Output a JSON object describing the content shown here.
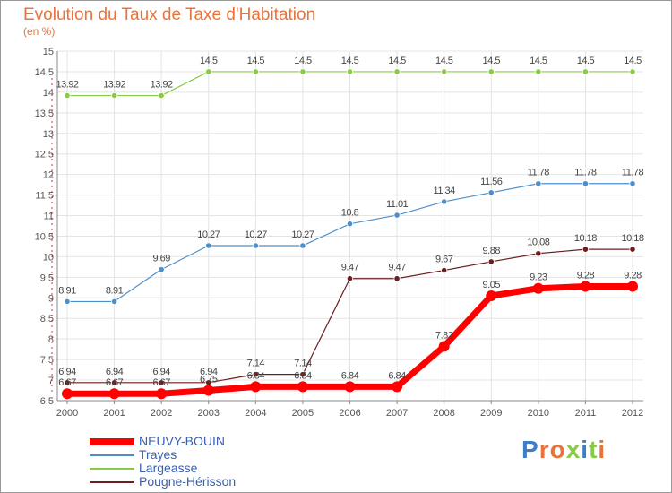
{
  "title": "Evolution du Taux de Taxe d'Habitation",
  "subtitle": "(en %)",
  "logo": "Proxiti",
  "chart_data": {
    "type": "line",
    "categories": [
      "2000",
      "2001",
      "2002",
      "2003",
      "2004",
      "2005",
      "2006",
      "2007",
      "2008",
      "2009",
      "2010",
      "2011",
      "2012"
    ],
    "ylim": [
      6.5,
      15
    ],
    "yticks": [
      "6.5",
      "7",
      "7.5",
      "8",
      "8.5",
      "9",
      "9.5",
      "10",
      "10.5",
      "11",
      "11.5",
      "12",
      "12.5",
      "13",
      "13.5",
      "14",
      "14.5",
      "15"
    ],
    "grid": true,
    "legend": "bottom-left",
    "series": [
      {
        "name": "NEUVY-BOUIN",
        "color": "#ff0000",
        "values": [
          6.67,
          6.67,
          6.67,
          6.75,
          6.84,
          6.84,
          6.84,
          6.84,
          7.82,
          9.05,
          9.23,
          9.28,
          9.28
        ],
        "labels": [
          "6.67",
          "6.67",
          "6.67",
          "6.75",
          "6.84",
          "6.84",
          "6.84",
          "6.84",
          "7.82",
          "9.05",
          "9.23",
          "9.28",
          "9.28"
        ]
      },
      {
        "name": "Trayes",
        "color": "#4f8fc8",
        "values": [
          8.91,
          8.91,
          9.69,
          10.27,
          10.27,
          10.27,
          10.8,
          11.01,
          11.34,
          11.56,
          11.78,
          11.78,
          11.78
        ],
        "labels": [
          "8.91",
          "8.91",
          "9.69",
          "10.27",
          "10.27",
          "10.27",
          "10.8",
          "11.01",
          "11.34",
          "11.56",
          "11.78",
          "11.78",
          "11.78"
        ]
      },
      {
        "name": "Largeasse",
        "color": "#88cc44",
        "values": [
          13.92,
          13.92,
          13.92,
          14.5,
          14.5,
          14.5,
          14.5,
          14.5,
          14.5,
          14.5,
          14.5,
          14.5,
          14.5
        ],
        "labels": [
          "13.92",
          "13.92",
          "13.92",
          "14.5",
          "14.5",
          "14.5",
          "14.5",
          "14.5",
          "14.5",
          "14.5",
          "14.5",
          "14.5",
          "14.5"
        ]
      },
      {
        "name": "Pougne-Hérisson",
        "color": "#6b1f1f",
        "values": [
          6.94,
          6.94,
          6.94,
          6.94,
          7.14,
          7.14,
          9.47,
          9.47,
          9.67,
          9.88,
          10.08,
          10.18,
          10.18
        ],
        "labels": [
          "6.94",
          "6.94",
          "6.94",
          "6.94",
          "7.14",
          "7.14",
          "9.47",
          "9.47",
          "9.67",
          "9.88",
          "10.08",
          "10.18",
          "10.18"
        ]
      }
    ]
  }
}
